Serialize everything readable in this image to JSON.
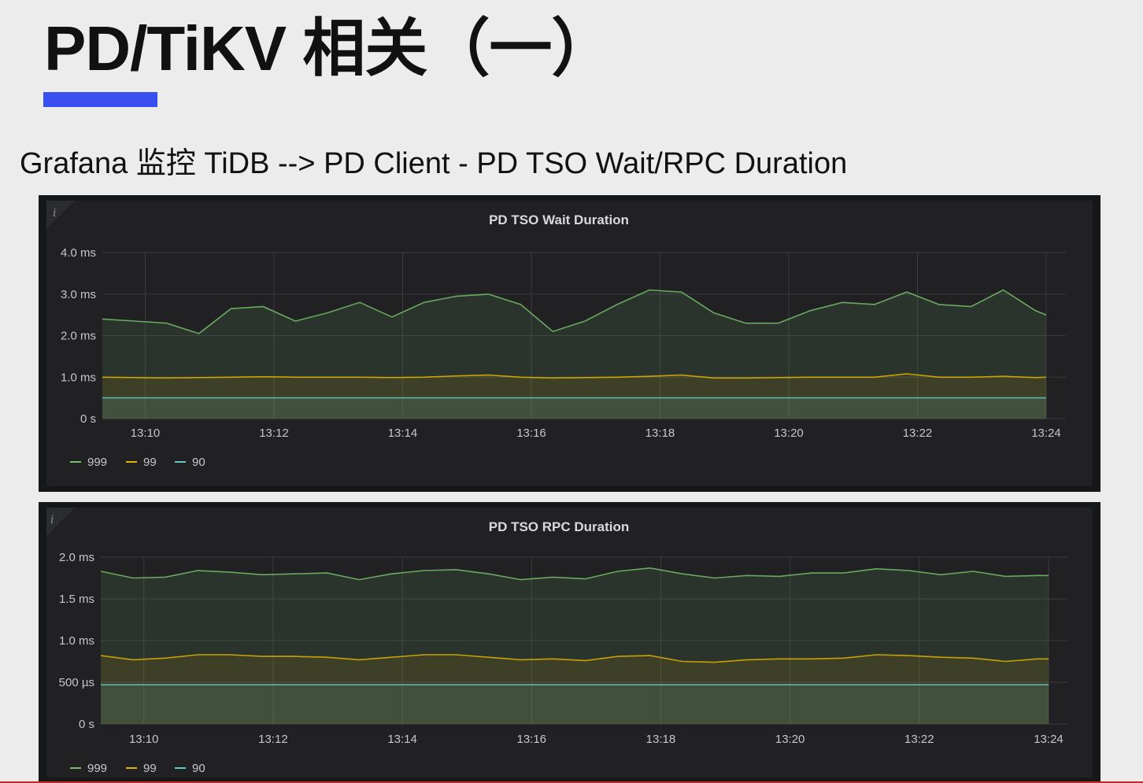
{
  "slide": {
    "title": "PD/TiKV 相关（一）",
    "subtitle": "Grafana 监控 TiDB --> PD Client - PD TSO Wait/RPC Duration"
  },
  "colors": {
    "accent_bar": "#3a4ff0",
    "series_999": "#73bf69",
    "series_99": "#e0b400",
    "series_90": "#5fc9c9"
  },
  "chart_data": [
    {
      "type": "area",
      "title": "PD TSO Wait Duration",
      "info_icon": "i",
      "x_unit": "time",
      "x_ticks": [
        "13:10",
        "13:12",
        "13:14",
        "13:16",
        "13:18",
        "13:20",
        "13:22",
        "13:24"
      ],
      "xlim": [
        "13:09:20",
        "13:24:00"
      ],
      "y_ticks": [
        "0 s",
        "1.0 ms",
        "2.0 ms",
        "3.0 ms",
        "4.0 ms"
      ],
      "y_tick_values": [
        0,
        1,
        2,
        3,
        4
      ],
      "y_unit": "ms",
      "ylim": [
        0,
        4
      ],
      "grid": true,
      "legend_position": "bottom-left",
      "x": [
        "13:09:20",
        "13:09:50",
        "13:10:20",
        "13:10:50",
        "13:11:20",
        "13:11:50",
        "13:12:20",
        "13:12:50",
        "13:13:20",
        "13:13:50",
        "13:14:20",
        "13:14:50",
        "13:15:20",
        "13:15:50",
        "13:16:20",
        "13:16:50",
        "13:17:20",
        "13:17:50",
        "13:18:20",
        "13:18:50",
        "13:19:20",
        "13:19:50",
        "13:20:20",
        "13:20:50",
        "13:21:20",
        "13:21:50",
        "13:22:20",
        "13:22:50",
        "13:23:20",
        "13:23:50",
        "13:24:00"
      ],
      "series": [
        {
          "name": "999",
          "color_key": "series_999",
          "values": [
            2.4,
            2.35,
            2.3,
            2.05,
            2.65,
            2.7,
            2.35,
            2.55,
            2.8,
            2.45,
            2.8,
            2.95,
            3.0,
            2.75,
            2.1,
            2.35,
            2.75,
            3.1,
            3.05,
            2.55,
            2.3,
            2.3,
            2.6,
            2.8,
            2.75,
            3.05,
            2.75,
            2.7,
            3.1,
            2.6,
            2.5
          ]
        },
        {
          "name": "99",
          "color_key": "series_99",
          "values": [
            1.0,
            0.99,
            0.98,
            0.99,
            1.0,
            1.01,
            1.0,
            1.0,
            1.0,
            0.99,
            1.0,
            1.03,
            1.05,
            1.0,
            0.98,
            0.99,
            1.0,
            1.02,
            1.05,
            0.98,
            0.98,
            0.99,
            1.0,
            1.0,
            1.0,
            1.08,
            1.0,
            1.0,
            1.02,
            0.99,
            1.0
          ]
        },
        {
          "name": "90",
          "color_key": "series_90",
          "values": [
            0.5,
            0.5,
            0.5,
            0.5,
            0.5,
            0.5,
            0.5,
            0.5,
            0.5,
            0.5,
            0.5,
            0.5,
            0.5,
            0.5,
            0.5,
            0.5,
            0.5,
            0.5,
            0.5,
            0.5,
            0.5,
            0.5,
            0.5,
            0.5,
            0.5,
            0.5,
            0.5,
            0.5,
            0.5,
            0.5,
            0.5
          ]
        }
      ]
    },
    {
      "type": "area",
      "title": "PD TSO RPC Duration",
      "info_icon": "i",
      "x_unit": "time",
      "x_ticks": [
        "13:10",
        "13:12",
        "13:14",
        "13:16",
        "13:18",
        "13:20",
        "13:22",
        "13:24"
      ],
      "xlim": [
        "13:09:20",
        "13:24:00"
      ],
      "y_ticks": [
        "0 s",
        "500 µs",
        "1.0 ms",
        "1.5 ms",
        "2.0 ms"
      ],
      "y_tick_values": [
        0,
        0.5,
        1.0,
        1.5,
        2.0
      ],
      "y_unit": "ms",
      "ylim": [
        0,
        2
      ],
      "grid": true,
      "legend_position": "bottom-left",
      "x": [
        "13:09:20",
        "13:09:50",
        "13:10:20",
        "13:10:50",
        "13:11:20",
        "13:11:50",
        "13:12:20",
        "13:12:50",
        "13:13:20",
        "13:13:50",
        "13:14:20",
        "13:14:50",
        "13:15:20",
        "13:15:50",
        "13:16:20",
        "13:16:50",
        "13:17:20",
        "13:17:50",
        "13:18:20",
        "13:18:50",
        "13:19:20",
        "13:19:50",
        "13:20:20",
        "13:20:50",
        "13:21:20",
        "13:21:50",
        "13:22:20",
        "13:22:50",
        "13:23:20",
        "13:23:50",
        "13:24:00"
      ],
      "series": [
        {
          "name": "999",
          "color_key": "series_999",
          "values": [
            1.83,
            1.75,
            1.76,
            1.84,
            1.82,
            1.79,
            1.8,
            1.81,
            1.73,
            1.8,
            1.84,
            1.85,
            1.8,
            1.73,
            1.76,
            1.74,
            1.83,
            1.87,
            1.8,
            1.75,
            1.78,
            1.77,
            1.81,
            1.81,
            1.86,
            1.84,
            1.79,
            1.83,
            1.77,
            1.78,
            1.78
          ]
        },
        {
          "name": "99",
          "color_key": "series_99",
          "values": [
            0.82,
            0.77,
            0.79,
            0.83,
            0.83,
            0.81,
            0.81,
            0.8,
            0.77,
            0.8,
            0.83,
            0.83,
            0.8,
            0.77,
            0.78,
            0.76,
            0.81,
            0.82,
            0.75,
            0.74,
            0.77,
            0.78,
            0.78,
            0.79,
            0.83,
            0.82,
            0.8,
            0.79,
            0.75,
            0.78,
            0.78
          ]
        },
        {
          "name": "90",
          "color_key": "series_90",
          "values": [
            0.47,
            0.47,
            0.47,
            0.47,
            0.47,
            0.47,
            0.47,
            0.47,
            0.47,
            0.47,
            0.47,
            0.47,
            0.47,
            0.47,
            0.47,
            0.47,
            0.47,
            0.47,
            0.47,
            0.47,
            0.47,
            0.47,
            0.47,
            0.47,
            0.47,
            0.47,
            0.47,
            0.47,
            0.47,
            0.47,
            0.47
          ]
        }
      ]
    }
  ]
}
